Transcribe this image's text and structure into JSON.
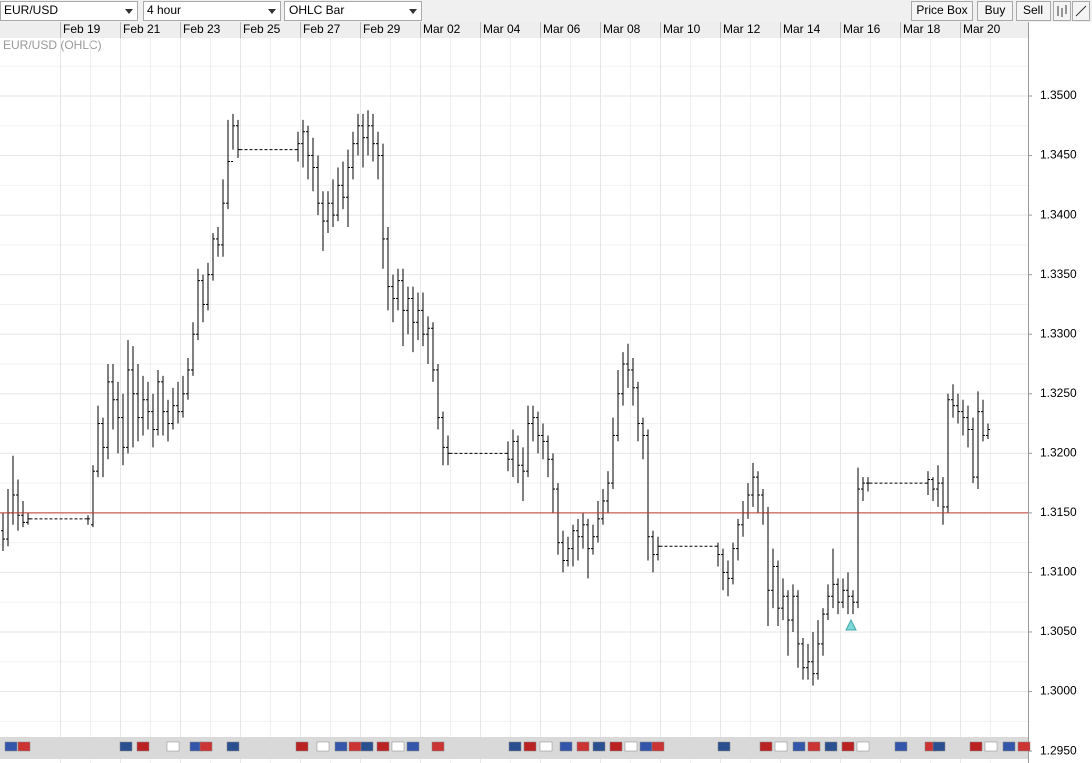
{
  "toolbar": {
    "symbol": "EUR/USD",
    "interval": "4 hour",
    "chart_style": "OHLC Bar",
    "buttons": [
      "Price Box",
      "Buy",
      "Sell"
    ]
  },
  "chart_data": {
    "type": "ohlc",
    "categories": [
      null,
      null,
      null,
      null,
      null,
      null,
      null,
      null,
      null,
      null,
      null,
      null,
      "Feb 19",
      null,
      null,
      null,
      null,
      null,
      null,
      null,
      null,
      null,
      null,
      null,
      "Feb 21",
      null,
      null,
      null,
      null,
      null,
      null,
      null,
      null,
      null,
      null,
      null,
      "Feb 23",
      null,
      null,
      null,
      null,
      null,
      null,
      null,
      null,
      null,
      null,
      null,
      "Feb 25",
      null,
      null,
      null,
      null,
      null,
      null,
      null,
      null,
      null,
      null,
      null,
      "Feb 27",
      null,
      null,
      null,
      null,
      null,
      null,
      null,
      null,
      null,
      null,
      null,
      "Feb 29",
      null,
      null,
      null,
      null,
      null,
      null,
      null,
      null,
      null,
      null,
      null,
      "Mar 02",
      null,
      null,
      null,
      null,
      null,
      null,
      null,
      null,
      null,
      null,
      null,
      "Mar 04",
      null,
      null,
      null,
      null,
      null,
      null,
      null,
      null,
      null,
      null,
      null,
      "Mar 06",
      null,
      null,
      null,
      null,
      null,
      null,
      null,
      null,
      null,
      null,
      null,
      "Mar 08",
      null,
      null,
      null,
      null,
      null,
      null,
      null,
      null,
      null,
      null,
      null,
      "Mar 10",
      null,
      null,
      null,
      null,
      null,
      null,
      null,
      null,
      null,
      null,
      null,
      "Mar 12",
      null,
      null,
      null,
      null,
      null,
      null,
      null,
      null,
      null,
      null,
      null,
      "Mar 14",
      null,
      null,
      null,
      null,
      null,
      null,
      null,
      null,
      null,
      null,
      null,
      "Mar 16",
      null,
      null,
      null,
      null,
      null,
      null,
      null,
      null,
      null,
      null,
      null,
      "Mar 18",
      null,
      null,
      null,
      null,
      null,
      null,
      null,
      null,
      null,
      null,
      null,
      "Mar 20",
      null,
      null,
      null,
      null,
      null
    ],
    "series": [
      {
        "name": "EUR/USD (OHLC)",
        "color": "#000000",
        "values": [
          [
            1.3135,
            1.315,
            1.3118,
            1.3128
          ],
          [
            1.3128,
            1.317,
            1.3122,
            1.315
          ],
          [
            1.315,
            1.3198,
            1.314,
            1.3165
          ],
          [
            1.3165,
            1.3178,
            1.3135,
            1.3148
          ],
          [
            1.3148,
            1.316,
            1.3138,
            1.3142
          ],
          [
            1.3142,
            1.315,
            1.314,
            1.3145
          ],
          null,
          null,
          null,
          null,
          null,
          null,
          null,
          null,
          null,
          null,
          null,
          [
            1.3145,
            1.3148,
            1.314,
            1.3145
          ],
          [
            1.314,
            1.319,
            1.3138,
            1.3185
          ],
          [
            1.3185,
            1.324,
            1.318,
            1.3225
          ],
          [
            1.3225,
            1.323,
            1.318,
            1.3205
          ],
          [
            1.3205,
            1.3275,
            1.3195,
            1.326
          ],
          [
            1.326,
            1.3275,
            1.322,
            1.3245
          ],
          [
            1.3245,
            1.326,
            1.32,
            1.323
          ],
          [
            1.323,
            1.325,
            1.319,
            1.3205
          ],
          [
            1.3205,
            1.3295,
            1.32,
            1.327
          ],
          [
            1.327,
            1.329,
            1.3205,
            1.325
          ],
          [
            1.325,
            1.3275,
            1.321,
            1.323
          ],
          [
            1.323,
            1.3265,
            1.3215,
            1.3245
          ],
          [
            1.3245,
            1.326,
            1.322,
            1.3235
          ],
          [
            1.3235,
            1.325,
            1.3205,
            1.322
          ],
          [
            1.322,
            1.327,
            1.3215,
            1.326
          ],
          [
            1.326,
            1.3265,
            1.3215,
            1.3235
          ],
          [
            1.3235,
            1.3245,
            1.321,
            1.3225
          ],
          [
            1.3225,
            1.3255,
            1.322,
            1.324
          ],
          [
            1.324,
            1.326,
            1.3225,
            1.3235
          ],
          [
            1.3235,
            1.3265,
            1.323,
            1.325
          ],
          [
            1.325,
            1.328,
            1.3245,
            1.327
          ],
          [
            1.327,
            1.331,
            1.3265,
            1.33
          ],
          [
            1.33,
            1.3355,
            1.3295,
            1.3345
          ],
          [
            1.3345,
            1.335,
            1.331,
            1.3325
          ],
          [
            1.3325,
            1.336,
            1.332,
            1.335
          ],
          [
            1.335,
            1.3385,
            1.3345,
            1.338
          ],
          [
            1.338,
            1.339,
            1.3365,
            1.3375
          ],
          [
            1.3375,
            1.343,
            1.3365,
            1.341
          ],
          [
            1.341,
            1.348,
            1.3405,
            1.3445
          ],
          [
            1.3445,
            1.3485,
            1.3455,
            1.3475
          ],
          [
            1.3475,
            1.348,
            1.3448,
            1.3455
          ],
          null,
          null,
          null,
          null,
          null,
          null,
          null,
          null,
          null,
          null,
          null,
          [
            1.3455,
            1.347,
            1.3445,
            1.346
          ],
          [
            1.346,
            1.348,
            1.344,
            1.347
          ],
          [
            1.347,
            1.3475,
            1.343,
            1.345
          ],
          [
            1.345,
            1.3465,
            1.342,
            1.344
          ],
          [
            1.344,
            1.345,
            1.34,
            1.341
          ],
          [
            1.341,
            1.342,
            1.337,
            1.3395
          ],
          [
            1.3395,
            1.342,
            1.3385,
            1.341
          ],
          [
            1.341,
            1.343,
            1.339,
            1.34
          ],
          [
            1.34,
            1.344,
            1.3395,
            1.3425
          ],
          [
            1.3425,
            1.3445,
            1.3405,
            1.3415
          ],
          [
            1.3415,
            1.3455,
            1.339,
            1.344
          ],
          [
            1.344,
            1.347,
            1.343,
            1.346
          ],
          [
            1.346,
            1.3485,
            1.345,
            1.3475
          ],
          [
            1.3475,
            1.3485,
            1.344,
            1.3465
          ],
          [
            1.3465,
            1.3488,
            1.345,
            1.3475
          ],
          [
            1.3475,
            1.3485,
            1.3445,
            1.346
          ],
          [
            1.346,
            1.347,
            1.343,
            1.345
          ],
          [
            1.345,
            1.346,
            1.3355,
            1.338
          ],
          [
            1.338,
            1.339,
            1.332,
            1.334
          ],
          [
            1.334,
            1.335,
            1.331,
            1.333
          ],
          [
            1.333,
            1.3355,
            1.332,
            1.3345
          ],
          [
            1.3345,
            1.3355,
            1.329,
            1.332
          ],
          [
            1.332,
            1.334,
            1.33,
            1.333
          ],
          [
            1.333,
            1.334,
            1.3285,
            1.331
          ],
          [
            1.331,
            1.3335,
            1.3295,
            1.332
          ],
          [
            1.332,
            1.3335,
            1.329,
            1.33
          ],
          [
            1.33,
            1.3315,
            1.3275,
            1.3305
          ],
          [
            1.3305,
            1.331,
            1.326,
            1.327
          ],
          [
            1.327,
            1.3275,
            1.322,
            1.323
          ],
          [
            1.323,
            1.3235,
            1.319,
            1.3205
          ],
          [
            1.3205,
            1.3215,
            1.319,
            1.32
          ],
          null,
          null,
          null,
          null,
          null,
          null,
          null,
          null,
          null,
          null,
          null,
          [
            1.32,
            1.321,
            1.3185,
            1.3195
          ],
          [
            1.3195,
            1.322,
            1.318,
            1.321
          ],
          [
            1.321,
            1.3215,
            1.3175,
            1.319
          ],
          [
            1.319,
            1.3205,
            1.316,
            1.3185
          ],
          [
            1.3185,
            1.324,
            1.318,
            1.3225
          ],
          [
            1.3225,
            1.324,
            1.321,
            1.323
          ],
          [
            1.323,
            1.3235,
            1.32,
            1.3215
          ],
          [
            1.3215,
            1.3225,
            1.3195,
            1.321
          ],
          [
            1.321,
            1.3215,
            1.318,
            1.3195
          ],
          [
            1.3195,
            1.32,
            1.315,
            1.317
          ],
          [
            1.317,
            1.3175,
            1.3115,
            1.3125
          ],
          [
            1.3125,
            1.3135,
            1.31,
            1.311
          ],
          [
            1.311,
            1.313,
            1.3105,
            1.312
          ],
          [
            1.312,
            1.314,
            1.3105,
            1.3135
          ],
          [
            1.3135,
            1.3145,
            1.311,
            1.313
          ],
          [
            1.313,
            1.315,
            1.312,
            1.314
          ],
          [
            1.314,
            1.3145,
            1.3095,
            1.312
          ],
          [
            1.312,
            1.314,
            1.3115,
            1.313
          ],
          [
            1.313,
            1.316,
            1.3125,
            1.3145
          ],
          [
            1.3145,
            1.317,
            1.314,
            1.316
          ],
          [
            1.316,
            1.3185,
            1.315,
            1.3175
          ],
          [
            1.3175,
            1.323,
            1.317,
            1.3215
          ],
          [
            1.3215,
            1.327,
            1.321,
            1.325
          ],
          [
            1.325,
            1.3285,
            1.324,
            1.3275
          ],
          [
            1.3275,
            1.3292,
            1.3255,
            1.327
          ],
          [
            1.327,
            1.328,
            1.324,
            1.3255
          ],
          [
            1.3255,
            1.326,
            1.321,
            1.3225
          ],
          [
            1.3225,
            1.323,
            1.3195,
            1.3215
          ],
          [
            1.3215,
            1.322,
            1.311,
            1.313
          ],
          [
            1.313,
            1.3135,
            1.31,
            1.3115
          ],
          [
            1.3115,
            1.313,
            1.311,
            1.3122
          ],
          null,
          null,
          null,
          null,
          null,
          null,
          null,
          null,
          null,
          null,
          null,
          [
            1.3122,
            1.3125,
            1.3105,
            1.3115
          ],
          [
            1.3115,
            1.312,
            1.3085,
            1.31
          ],
          [
            1.31,
            1.311,
            1.308,
            1.3095
          ],
          [
            1.3095,
            1.3125,
            1.309,
            1.312
          ],
          [
            1.312,
            1.3145,
            1.311,
            1.314
          ],
          [
            1.314,
            1.316,
            1.313,
            1.315
          ],
          [
            1.315,
            1.3175,
            1.3145,
            1.3165
          ],
          [
            1.3165,
            1.3192,
            1.3155,
            1.318
          ],
          [
            1.318,
            1.3185,
            1.315,
            1.3165
          ],
          [
            1.3165,
            1.317,
            1.314,
            1.315
          ],
          [
            1.315,
            1.3155,
            1.3055,
            1.3085
          ],
          [
            1.3085,
            1.312,
            1.307,
            1.3105
          ],
          [
            1.3105,
            1.311,
            1.3055,
            1.307
          ],
          [
            1.307,
            1.3095,
            1.306,
            1.308
          ],
          [
            1.308,
            1.3085,
            1.303,
            1.306
          ],
          [
            1.306,
            1.309,
            1.305,
            1.308
          ],
          [
            1.308,
            1.3085,
            1.302,
            1.304
          ],
          [
            1.304,
            1.3045,
            1.301,
            1.302
          ],
          [
            1.302,
            1.304,
            1.301,
            1.3025
          ],
          [
            1.3025,
            1.305,
            1.3005,
            1.3015
          ],
          [
            1.3015,
            1.306,
            1.301,
            1.304
          ],
          [
            1.304,
            1.307,
            1.303,
            1.3065
          ],
          [
            1.3065,
            1.309,
            1.306,
            1.308
          ],
          [
            1.308,
            1.312,
            1.307,
            1.309
          ],
          [
            1.309,
            1.3095,
            1.3065,
            1.3075
          ],
          [
            1.3075,
            1.3095,
            1.307,
            1.3085
          ],
          [
            1.3085,
            1.31,
            1.3065,
            1.308
          ],
          [
            1.308,
            1.3085,
            1.3065,
            1.3075
          ],
          [
            1.3075,
            1.3188,
            1.307,
            1.317
          ],
          [
            1.317,
            1.318,
            1.316,
            1.3175
          ],
          [
            1.3175,
            1.318,
            1.3168,
            1.3175
          ],
          null,
          null,
          null,
          null,
          null,
          null,
          null,
          null,
          null,
          null,
          null,
          [
            1.3175,
            1.3185,
            1.3165,
            1.3178
          ],
          [
            1.3178,
            1.318,
            1.316,
            1.317
          ],
          [
            1.317,
            1.319,
            1.3155,
            1.3175
          ],
          [
            1.3175,
            1.318,
            1.314,
            1.3155
          ],
          [
            1.3155,
            1.325,
            1.315,
            1.3245
          ],
          [
            1.3245,
            1.3258,
            1.323,
            1.324
          ],
          [
            1.324,
            1.325,
            1.3225,
            1.3235
          ],
          [
            1.3235,
            1.3245,
            1.3215,
            1.323
          ],
          [
            1.323,
            1.324,
            1.3205,
            1.322
          ],
          [
            1.322,
            1.323,
            1.3175,
            1.318
          ],
          [
            1.318,
            1.3252,
            1.317,
            1.3235
          ],
          [
            1.3235,
            1.3245,
            1.321,
            1.3215
          ],
          [
            1.3215,
            1.3225,
            1.3212,
            1.322
          ]
        ]
      }
    ],
    "ylim": [
      1.294,
      1.35487
    ],
    "yticks": [
      {
        "value": 1.295,
        "label": "1.2950"
      },
      {
        "value": 1.3,
        "label": "1.3000"
      },
      {
        "value": 1.305,
        "label": "1.3050"
      },
      {
        "value": 1.31,
        "label": "1.3100"
      },
      {
        "value": 1.315,
        "label": "1.3150"
      },
      {
        "value": 1.32,
        "label": "1.3200"
      },
      {
        "value": 1.325,
        "label": "1.3250"
      },
      {
        "value": 1.33,
        "label": "1.3300"
      },
      {
        "value": 1.335,
        "label": "1.3350"
      },
      {
        "value": 1.34,
        "label": "1.3400"
      },
      {
        "value": 1.345,
        "label": "1.3450"
      },
      {
        "value": 1.35,
        "label": "1.3500"
      }
    ],
    "grid": true,
    "price_line": 1.315,
    "price_line_color": "#c0392b"
  }
}
